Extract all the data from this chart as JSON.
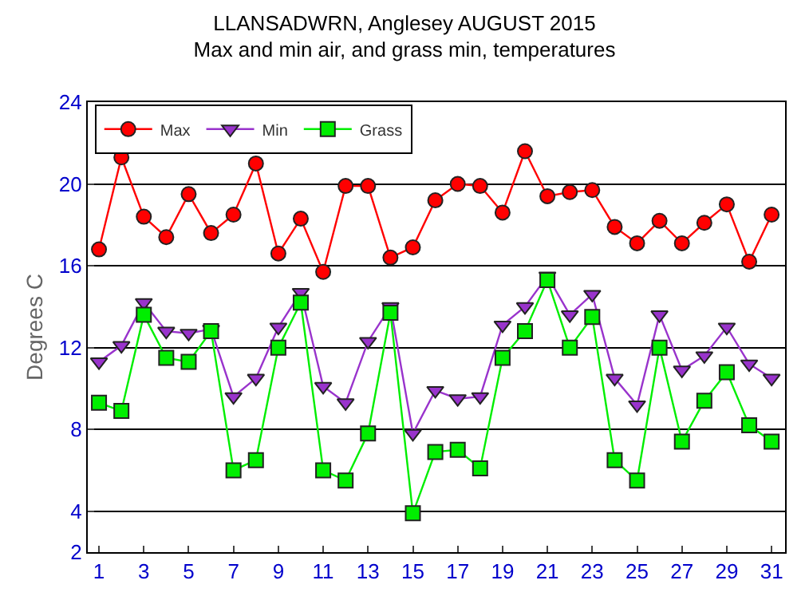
{
  "chart_data": {
    "type": "line",
    "title": "LLANSADWRN, Anglesey AUGUST 2015",
    "subtitle": "Max and min air, and grass min, temperatures",
    "ylabel": "Degrees C",
    "x": [
      1,
      2,
      3,
      4,
      5,
      6,
      7,
      8,
      9,
      10,
      11,
      12,
      13,
      14,
      15,
      16,
      17,
      18,
      19,
      20,
      21,
      22,
      23,
      24,
      25,
      26,
      27,
      28,
      29,
      30,
      31
    ],
    "series": [
      {
        "name": "Max",
        "color": "#ff0000",
        "marker": "circle",
        "values": [
          16.8,
          21.3,
          18.4,
          17.4,
          19.5,
          17.6,
          18.5,
          21.0,
          16.6,
          18.3,
          15.7,
          19.9,
          19.9,
          16.4,
          16.9,
          19.2,
          20.0,
          19.9,
          18.6,
          21.6,
          19.4,
          19.6,
          19.7,
          17.9,
          17.1,
          18.2,
          17.1,
          18.1,
          19.0,
          16.2,
          18.5
        ]
      },
      {
        "name": "Min",
        "color": "#9933cc",
        "marker": "triangle-down",
        "values": [
          11.3,
          12.1,
          14.2,
          12.8,
          12.7,
          12.9,
          9.6,
          10.5,
          13.0,
          14.7,
          10.1,
          9.3,
          12.3,
          14.0,
          7.8,
          9.9,
          9.5,
          9.6,
          13.1,
          14.0,
          15.5,
          13.6,
          14.6,
          10.5,
          9.2,
          13.6,
          10.9,
          11.6,
          13.0,
          11.2,
          10.5
        ]
      },
      {
        "name": "Grass",
        "color": "#00ee00",
        "marker": "square",
        "values": [
          9.3,
          8.9,
          13.6,
          11.5,
          11.3,
          12.8,
          6.0,
          6.5,
          12.0,
          14.2,
          6.0,
          5.5,
          7.8,
          13.7,
          3.9,
          6.9,
          7.0,
          6.1,
          11.5,
          12.8,
          15.3,
          12.0,
          13.5,
          6.5,
          5.5,
          12.0,
          7.4,
          9.4,
          10.8,
          8.2,
          7.4
        ]
      }
    ],
    "xlim": [
      0.5,
      31.6
    ],
    "xticks": [
      1,
      3,
      5,
      7,
      9,
      11,
      13,
      15,
      17,
      19,
      21,
      23,
      25,
      27,
      29,
      31
    ],
    "ylim": [
      2,
      24
    ],
    "yticks": [
      2,
      4,
      8,
      12,
      16,
      20,
      24
    ],
    "grid": "y",
    "legend": "top left",
    "line_style": "solid"
  }
}
